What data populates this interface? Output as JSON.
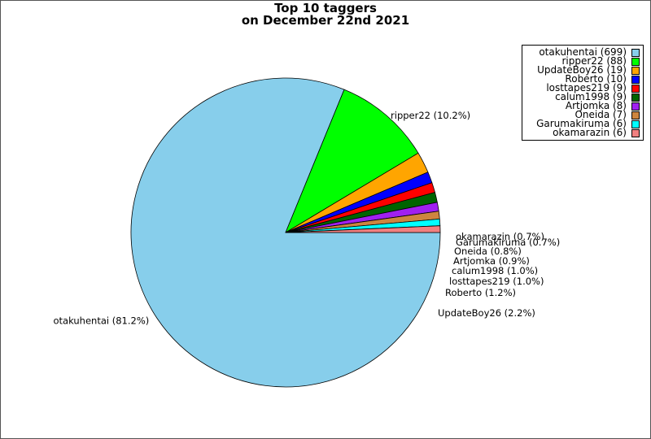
{
  "chart_data": {
    "type": "pie",
    "title": [
      "Top 10 taggers",
      "on December 22nd 2021"
    ],
    "slices": [
      {
        "name": "otakuhentai",
        "value": 699,
        "percent_label": "81.2%",
        "color": "#87ceeb"
      },
      {
        "name": "ripper22",
        "value": 88,
        "percent_label": "10.2%",
        "color": "#00ff00"
      },
      {
        "name": "UpdateBoy26",
        "value": 19,
        "percent_label": "2.2%",
        "color": "#ffa500"
      },
      {
        "name": "Roberto",
        "value": 10,
        "percent_label": "1.2%",
        "color": "#0000ff"
      },
      {
        "name": "losttapes219",
        "value": 9,
        "percent_label": "1.0%",
        "color": "#ff0000"
      },
      {
        "name": "calum1998",
        "value": 9,
        "percent_label": "1.0%",
        "color": "#006400"
      },
      {
        "name": "Artjomka",
        "value": 8,
        "percent_label": "0.9%",
        "color": "#a020f0"
      },
      {
        "name": "Oneida",
        "value": 7,
        "percent_label": "0.8%",
        "color": "#cd853f"
      },
      {
        "name": "Garumakiruma",
        "value": 6,
        "percent_label": "0.7%",
        "color": "#00ffff"
      },
      {
        "name": "okamarazin",
        "value": 6,
        "percent_label": "0.7%",
        "color": "#f08080"
      }
    ],
    "legend_placement": "top-right"
  }
}
